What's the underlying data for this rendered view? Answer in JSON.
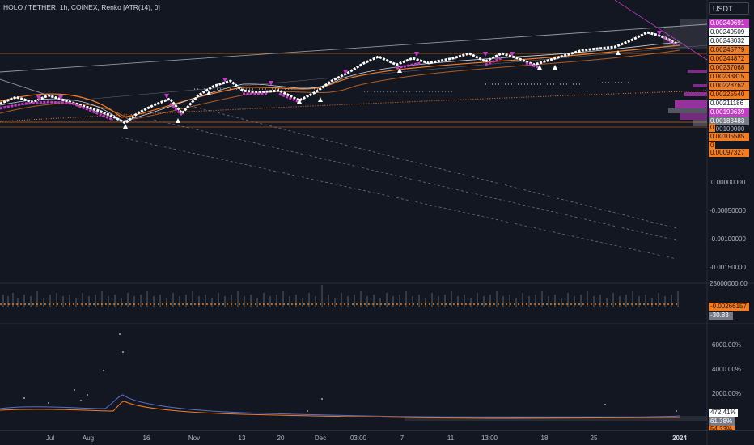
{
  "header": {
    "symbol_title": "HOLO / TETHER, 1h, COINEX, Renko [ATR(14), 0]",
    "currency_button": "USDT"
  },
  "colors": {
    "background": "#131722",
    "grid": "#2a2e39",
    "orange": "#f57c1f",
    "purple": "#c23cc4",
    "white": "#ffffff",
    "gray_tag": "#787b86"
  },
  "price_tags": [
    {
      "value": "0.00249691",
      "color": "#c23cc4"
    },
    {
      "value": "0.00249509",
      "color": "#ffffff"
    },
    {
      "value": "0.00248032",
      "color": "#ffffff"
    },
    {
      "value": "0.00245779",
      "color": "#f57c1f"
    },
    {
      "value": "0.00244872",
      "color": "#f57c1f"
    },
    {
      "value": "0.00237068",
      "color": "#f57c1f"
    },
    {
      "value": "0.00233815",
      "color": "#f57c1f"
    },
    {
      "value": "0.00228762",
      "color": "#f57c1f"
    },
    {
      "value": "0.00225540",
      "color": "#f57c1f"
    },
    {
      "value": "0.00211186",
      "color": "#ffffff"
    },
    {
      "value": "0.00199639",
      "color": "#c23cc4"
    },
    {
      "value": "0.00183483",
      "color": "#787b86"
    },
    {
      "value": "0",
      "color": "#f57c1f"
    },
    {
      "value": "0.00105585",
      "color": "#f57c1f"
    },
    {
      "value": "0",
      "color": "#f57c1f"
    },
    {
      "value": "0.00097327",
      "color": "#f57c1f"
    }
  ],
  "overlap_label": "0.00100000",
  "price_axis": [
    "0.00000000",
    "-0.00050000",
    "-0.00100000",
    "-0.00150000"
  ],
  "volume_pane": {
    "axis_label": "25000000.00",
    "tag_value": "-0.00266157",
    "tag_value2": "-30.83"
  },
  "percent_pane": {
    "axis_labels": [
      "6000.00%",
      "4000.00%",
      "2000.00%"
    ],
    "tag_value": "472.41%",
    "tag_value2": "61.38%",
    "tag_value3": "54.33%"
  },
  "time_axis": [
    "Jul",
    "Aug",
    "16",
    "Nov",
    "13",
    "20",
    "Dec",
    "03:00",
    "7",
    "11",
    "13:00",
    "18",
    "25",
    "2024"
  ]
}
